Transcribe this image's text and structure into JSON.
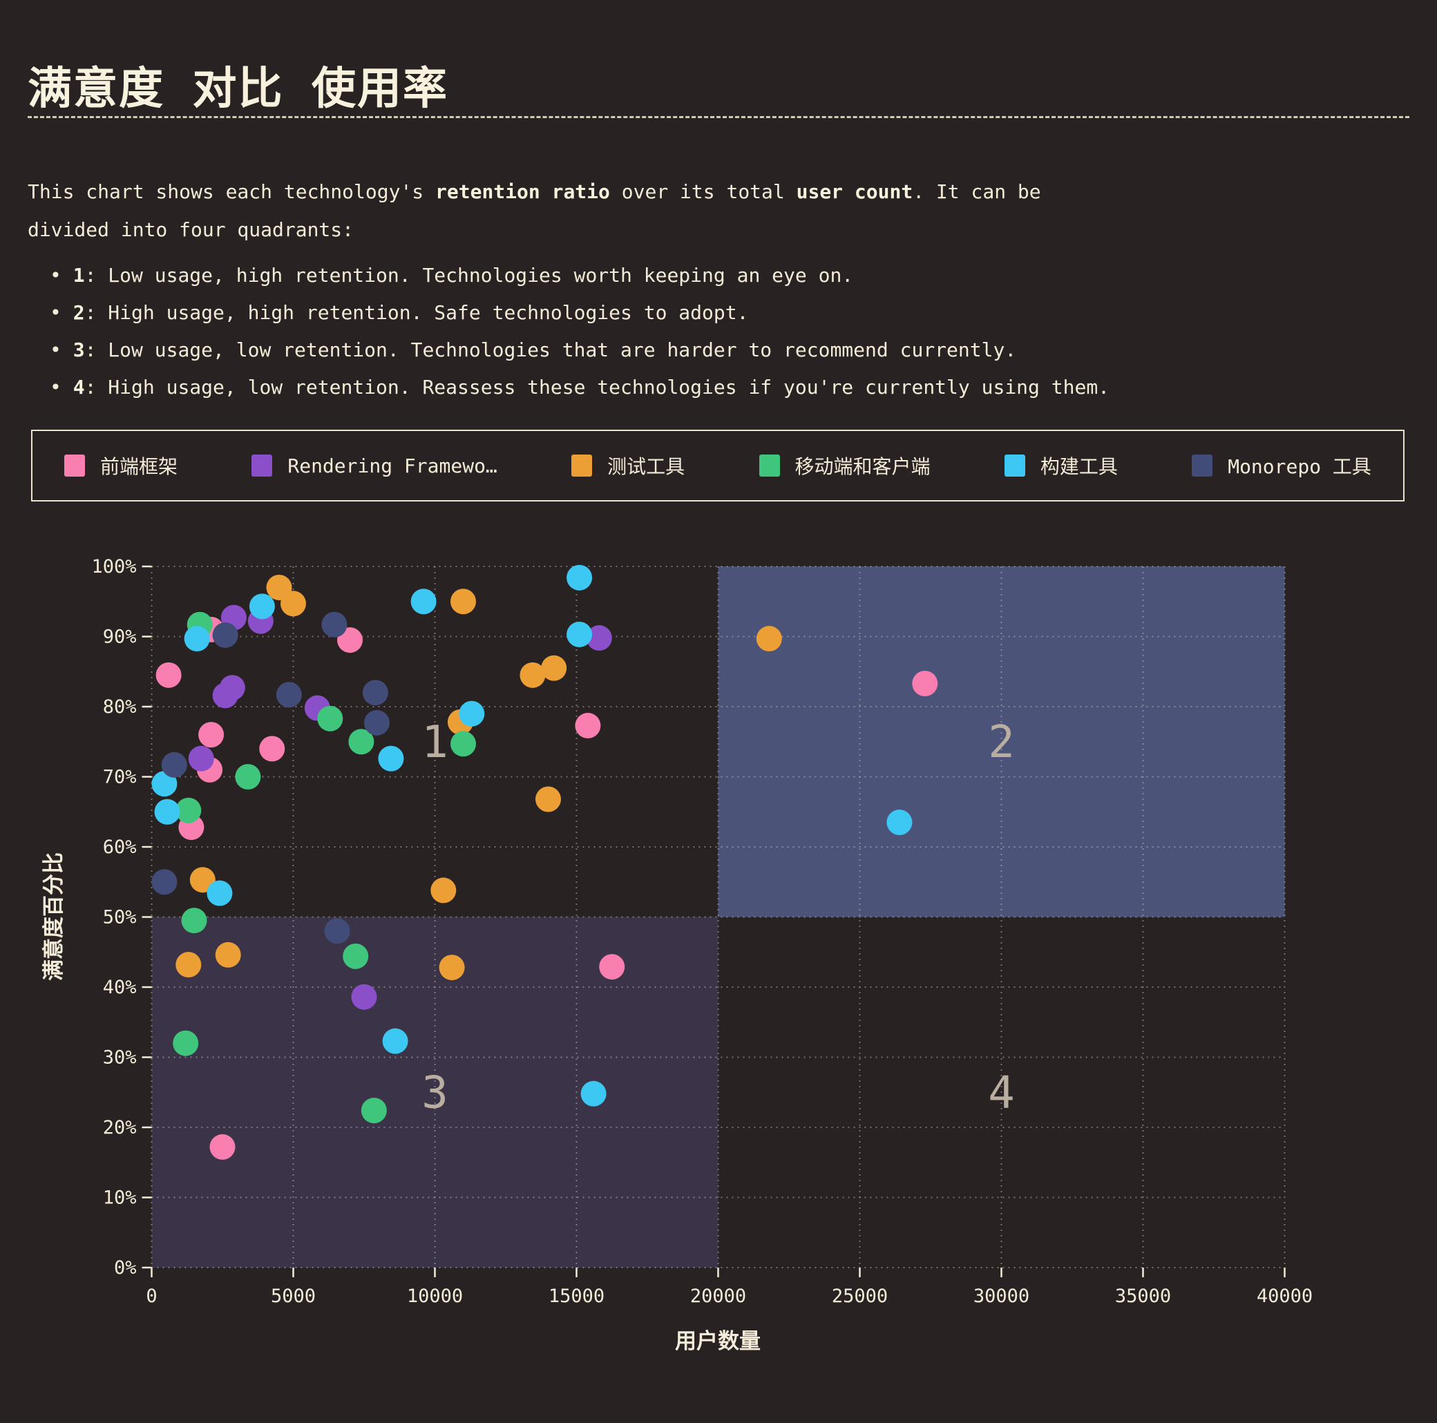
{
  "title": "满意度 对比 使用率",
  "description": {
    "segments": [
      {
        "text": "This chart shows each technology's ",
        "bold": false
      },
      {
        "text": "retention ratio",
        "bold": true
      },
      {
        "text": " over its total ",
        "bold": false
      },
      {
        "text": "user count",
        "bold": true
      },
      {
        "text": ". It can be divided into four quadrants:",
        "bold": false
      }
    ],
    "bullets": [
      {
        "num": "1",
        "text": ": Low usage, high retention. Technologies worth keeping an eye on."
      },
      {
        "num": "2",
        "text": ": High usage, high retention. Safe technologies to adopt."
      },
      {
        "num": "3",
        "text": ": Low usage, low retention. Technologies that are harder to recommend currently."
      },
      {
        "num": "4",
        "text": ": High usage, low retention. Reassess these technologies if you're currently using them."
      }
    ]
  },
  "legend": {
    "items": [
      {
        "label": "前端框架",
        "color": "#f87fb0"
      },
      {
        "label": "Rendering Framewo…",
        "color": "#8a4fc9"
      },
      {
        "label": "测试工具",
        "color": "#eb9f35"
      },
      {
        "label": "移动端和客户端",
        "color": "#3fc57c"
      },
      {
        "label": "构建工具",
        "color": "#3cc8f2"
      },
      {
        "label": "Monorepo 工具",
        "color": "#414c78"
      }
    ]
  },
  "chart_data": {
    "type": "scatter",
    "xlabel": "用户数量",
    "ylabel": "满意度百分比",
    "xlim": [
      0,
      40000
    ],
    "ylim": [
      0,
      100
    ],
    "xticks": [
      0,
      5000,
      10000,
      15000,
      20000,
      25000,
      30000,
      35000,
      40000
    ],
    "yticks": [
      0,
      10,
      20,
      30,
      40,
      50,
      60,
      70,
      80,
      90,
      100
    ],
    "ytick_suffix": "%",
    "grid": "dotted",
    "quadrants": [
      {
        "label": "1",
        "x": 10000,
        "y": 75,
        "fill": "none"
      },
      {
        "label": "2",
        "x": 30000,
        "y": 75,
        "fill": "#4c5379"
      },
      {
        "label": "3",
        "x": 10000,
        "y": 25,
        "fill": "#3b3448"
      },
      {
        "label": "4",
        "x": 30000,
        "y": 25,
        "fill": "none"
      }
    ],
    "quadrant_split": {
      "x": 20000,
      "y": 50
    },
    "series": [
      {
        "name": "前端框架",
        "color": "#f87fb0",
        "points": [
          [
            600,
            84.5
          ],
          [
            2100,
            91
          ],
          [
            7000,
            89.5
          ],
          [
            2100,
            76
          ],
          [
            4250,
            74
          ],
          [
            2050,
            71
          ],
          [
            15400,
            77.3
          ],
          [
            1400,
            62.8
          ],
          [
            16250,
            42.9
          ],
          [
            27300,
            83.3
          ],
          [
            2500,
            17.2
          ]
        ]
      },
      {
        "name": "Rendering Framewo…",
        "color": "#8a4fc9",
        "points": [
          [
            2900,
            92.7
          ],
          [
            3850,
            92.2
          ],
          [
            2600,
            81.6
          ],
          [
            2850,
            82.7
          ],
          [
            5850,
            79.8
          ],
          [
            1750,
            72.6
          ],
          [
            15800,
            89.8
          ],
          [
            7500,
            38.6
          ]
        ]
      },
      {
        "name": "测试工具",
        "color": "#eb9f35",
        "points": [
          [
            4500,
            97
          ],
          [
            5000,
            94.7
          ],
          [
            11000,
            95
          ],
          [
            14200,
            85.5
          ],
          [
            13450,
            84.5
          ],
          [
            10900,
            77.8
          ],
          [
            14000,
            66.8
          ],
          [
            1800,
            55.3
          ],
          [
            10300,
            53.8
          ],
          [
            2700,
            44.6
          ],
          [
            1300,
            43.2
          ],
          [
            10600,
            42.8
          ],
          [
            21800,
            89.7
          ]
        ]
      },
      {
        "name": "移动端和客户端",
        "color": "#3fc57c",
        "points": [
          [
            1700,
            91.7
          ],
          [
            6300,
            78.3
          ],
          [
            7400,
            75
          ],
          [
            11000,
            74.7
          ],
          [
            3400,
            70
          ],
          [
            1300,
            65.2
          ],
          [
            1500,
            49.5
          ],
          [
            7200,
            44.4
          ],
          [
            1200,
            32
          ],
          [
            7850,
            22.4
          ]
        ]
      },
      {
        "name": "构建工具",
        "color": "#3cc8f2",
        "points": [
          [
            3900,
            94.3
          ],
          [
            1600,
            89.7
          ],
          [
            9600,
            95
          ],
          [
            15100,
            98.4
          ],
          [
            15100,
            90.3
          ],
          [
            11300,
            79
          ],
          [
            8450,
            72.6
          ],
          [
            450,
            69
          ],
          [
            550,
            65
          ],
          [
            2400,
            53.4
          ],
          [
            8600,
            32.3
          ],
          [
            15600,
            24.8
          ],
          [
            26400,
            63.5
          ]
        ]
      },
      {
        "name": "Monorepo 工具",
        "color": "#414c78",
        "points": [
          [
            2600,
            90.2
          ],
          [
            6450,
            91.7
          ],
          [
            4850,
            81.7
          ],
          [
            7900,
            82
          ],
          [
            7950,
            77.7
          ],
          [
            800,
            71.7
          ],
          [
            450,
            55
          ],
          [
            6550,
            48
          ]
        ]
      }
    ],
    "colors": {
      "background": "#282222",
      "text": "#f4ecd9",
      "grid": "#d8d0c4",
      "quadrant_label": "#b9ae9f",
      "quadrant2_fill": "#4c5379",
      "quadrant3_fill": "#3b3448"
    }
  }
}
